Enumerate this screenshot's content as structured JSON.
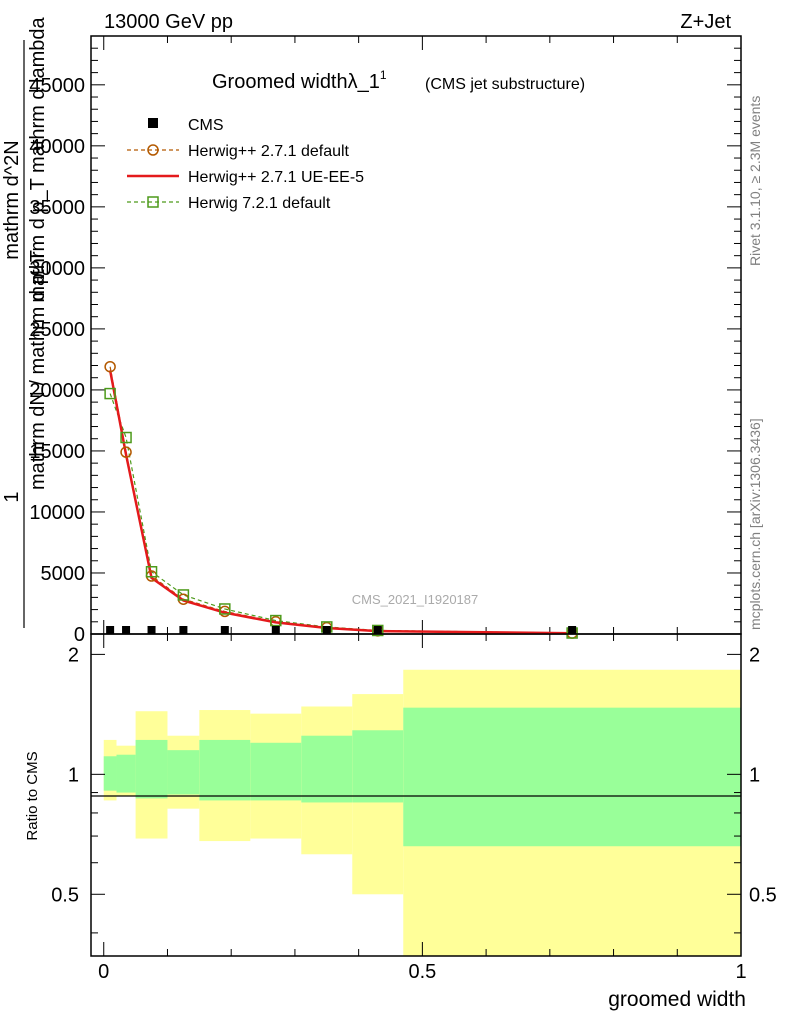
{
  "header": {
    "left": "13000 GeV pp",
    "right": "Z+Jet"
  },
  "side_labels": {
    "rivet": "Rivet 3.1.10, ≥ 2.3M events",
    "mcplots": "mcplots.cern.ch [arXiv:1306.3436]"
  },
  "chart_data": [
    {
      "panel": "main",
      "type": "line",
      "title": "Groomed widthλ_1",
      "title_superscript": "1",
      "subtitle": "(CMS jet substructure)",
      "watermark": "CMS_2021_I1920187",
      "ylabel_lines": [
        "1",
        "mathrm dN / mathrm d p_T",
        "mathrm d^2N",
        "mathrm d p_T mathrm d lambda"
      ],
      "xlim": [
        -0.02,
        1.0
      ],
      "ylim": [
        0,
        49000
      ],
      "yticks": [
        0,
        5000,
        10000,
        15000,
        20000,
        25000,
        30000,
        35000,
        40000,
        45000
      ],
      "ytick_labels": [
        "0",
        "5000",
        "10000",
        "15000",
        "20000",
        "25000",
        "30000",
        "35000",
        "40000",
        "45000"
      ],
      "legend_position": "top-left",
      "bin_edges": [
        0.0,
        0.02,
        0.05,
        0.1,
        0.15,
        0.23,
        0.31,
        0.39,
        0.47,
        1.0
      ],
      "x": [
        0.01,
        0.035,
        0.075,
        0.125,
        0.19,
        0.27,
        0.35,
        0.43,
        0.735
      ],
      "series": [
        {
          "name": "CMS",
          "style": "data",
          "color": "#000000",
          "values": [
            60,
            60,
            50,
            40,
            30,
            20,
            15,
            10,
            3
          ]
        },
        {
          "name": "Herwig++ 2.7.1 default",
          "style": "circle",
          "color": "#b35900",
          "values": [
            21900,
            14900,
            4750,
            2850,
            1850,
            1000,
            520,
            260,
            70
          ]
        },
        {
          "name": "Herwig++ 2.7.1 UE-EE-5",
          "style": "solid",
          "color": "#e41a1c",
          "values": [
            21600,
            14700,
            4600,
            2750,
            1750,
            950,
            490,
            240,
            60
          ]
        },
        {
          "name": "Herwig 7.2.1 default",
          "style": "square",
          "color": "#4d9a1a",
          "values": [
            19700,
            16100,
            5100,
            3200,
            2050,
            1100,
            580,
            290,
            80
          ]
        }
      ]
    },
    {
      "panel": "ratio",
      "type": "area",
      "ylabel": "Ratio to CMS",
      "xlabel": "groomed width",
      "xlim": [
        -0.02,
        1.0
      ],
      "ylim": [
        0.35,
        2.25
      ],
      "xticks": [
        0,
        0.5,
        1
      ],
      "xtick_labels": [
        "0",
        "0.5",
        "1"
      ],
      "yticks": [
        0.5,
        1,
        2
      ],
      "ytick_labels": [
        "0.5",
        "1",
        "2"
      ],
      "bin_edges": [
        0.0,
        0.02,
        0.05,
        0.1,
        0.15,
        0.23,
        0.31,
        0.39,
        0.47,
        1.0
      ],
      "band_inner_low": [
        0.91,
        0.9,
        0.87,
        0.89,
        0.86,
        0.86,
        0.85,
        0.85,
        0.66
      ],
      "band_inner_high": [
        1.11,
        1.12,
        1.22,
        1.15,
        1.22,
        1.2,
        1.25,
        1.29,
        1.47
      ],
      "band_outer_low": [
        0.86,
        0.88,
        0.69,
        0.82,
        0.68,
        0.69,
        0.63,
        0.5,
        0.35
      ],
      "band_outer_high": [
        1.22,
        1.18,
        1.44,
        1.25,
        1.45,
        1.42,
        1.48,
        1.59,
        1.83
      ],
      "inner_color": "#99ff99",
      "outer_color": "#ffff99"
    }
  ]
}
